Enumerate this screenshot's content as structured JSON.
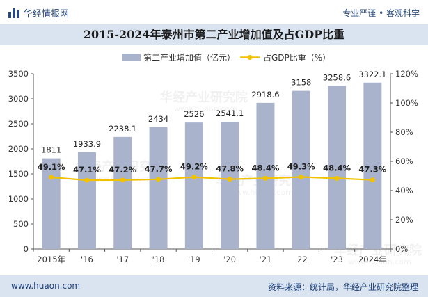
{
  "header": {
    "brand": "华经情报网",
    "tagline": "专业严谨 • 客观科学"
  },
  "footer": {
    "website": "www.huaon.com",
    "source": "资料来源：统计局，华经产业研究院整理"
  },
  "watermark": {
    "text": "华经产业研究院",
    "url": "www.huaon.com"
  },
  "colors": {
    "bar": "#a9b4cc",
    "line": "#f2c200",
    "header_band": "#d9e4f0",
    "brand": "#2a4a7a"
  },
  "chart_data": {
    "type": "bar",
    "title": "2015-2024年泰州市第二产业增加值及占GDP比重",
    "categories": [
      "2015年",
      "'16",
      "'17",
      "'18",
      "'19",
      "'20",
      "'21",
      "'22",
      "'23",
      "2024年"
    ],
    "series": [
      {
        "name": "第二产业增加值（亿元）",
        "type": "bar",
        "axis": "left",
        "values": [
          1811,
          1933.9,
          2238.1,
          2434,
          2526,
          2541.1,
          2918.6,
          3158,
          3258.6,
          3322.1
        ],
        "labels": [
          "1811",
          "1933.9",
          "2238.1",
          "2434",
          "2526",
          "2541.1",
          "2918.6",
          "3158",
          "3258.6",
          "3322.1"
        ]
      },
      {
        "name": "占GDP比重（%）",
        "type": "line",
        "axis": "right",
        "values": [
          49.1,
          47.1,
          47.2,
          47.7,
          49.2,
          47.8,
          48.4,
          49.3,
          48.4,
          47.3
        ],
        "labels": [
          "49.1%",
          "47.1%",
          "47.2%",
          "47.7%",
          "49.2%",
          "47.8%",
          "48.4%",
          "49.3%",
          "48.4%",
          "47.3%"
        ]
      }
    ],
    "y_left": {
      "min": 0,
      "max": 3500,
      "step": 500,
      "ticks": [
        "0",
        "500",
        "1000",
        "1500",
        "2000",
        "2500",
        "3000",
        "3500"
      ]
    },
    "y_right": {
      "min": 0,
      "max": 120,
      "step": 20,
      "ticks": [
        "0%",
        "20%",
        "40%",
        "60%",
        "80%",
        "100%",
        "120%"
      ]
    },
    "legend_position": "top-center",
    "grid": false
  }
}
